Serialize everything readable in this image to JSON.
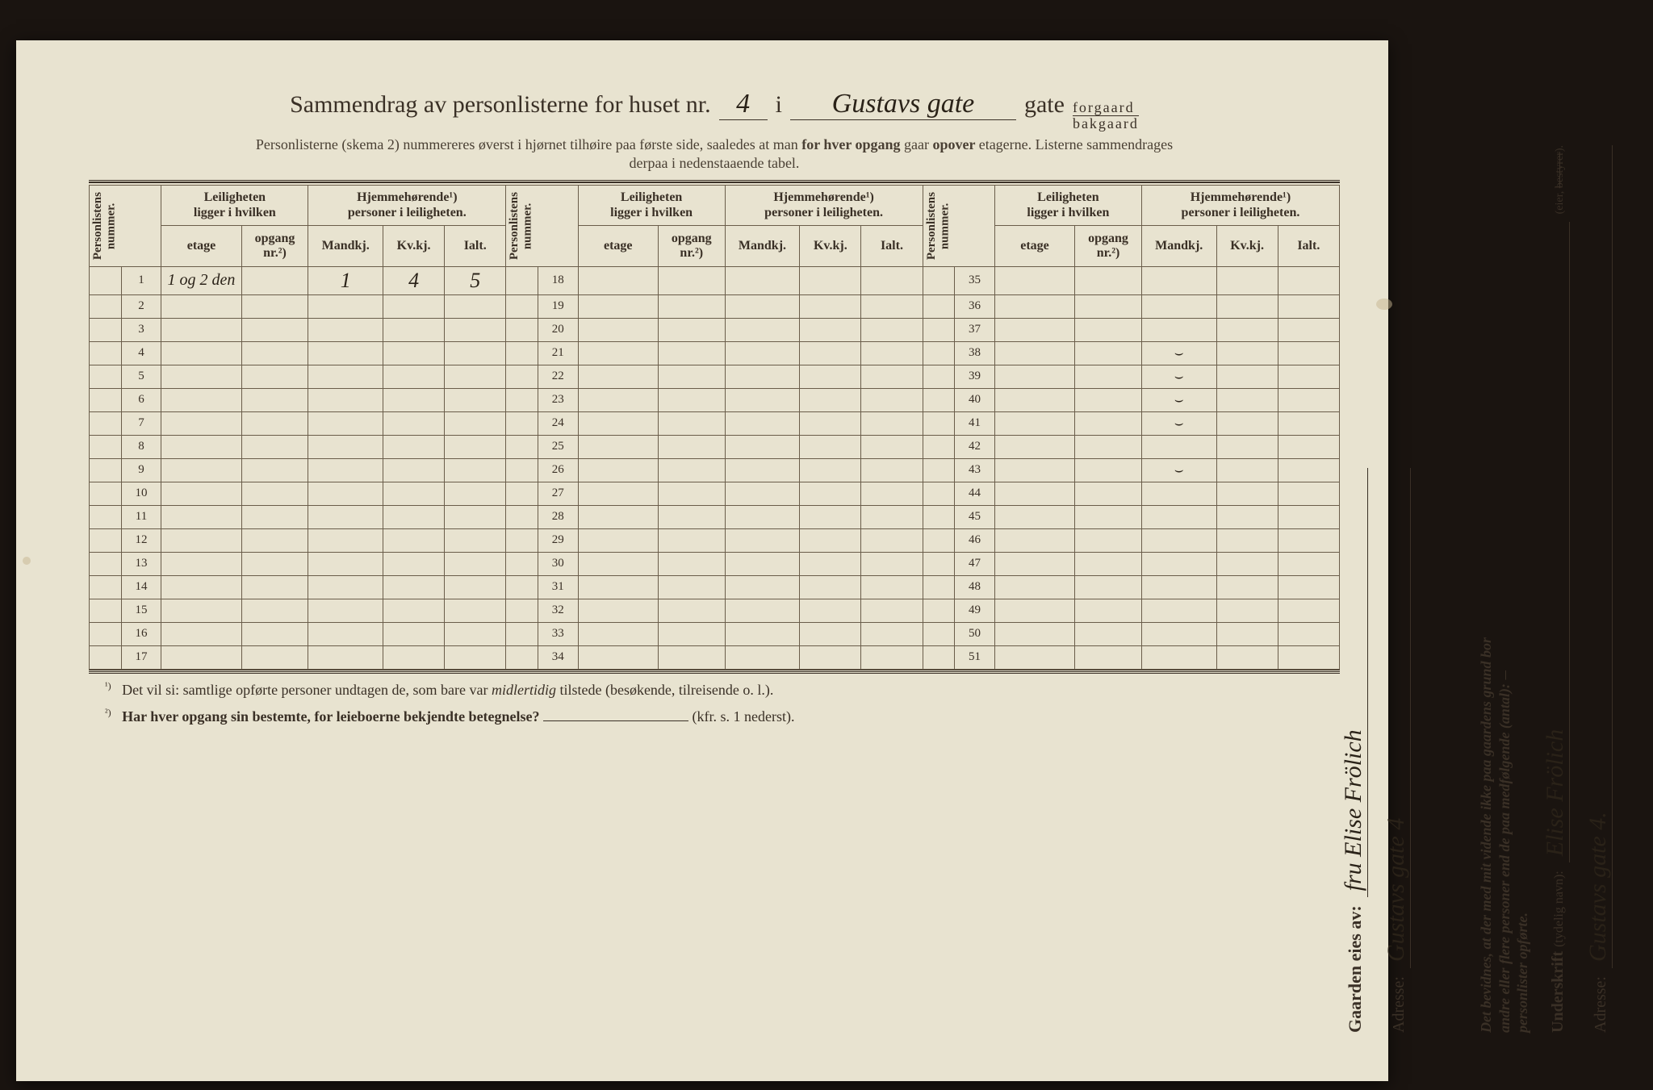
{
  "title": {
    "prefix": "Sammendrag av personlisterne for huset nr.",
    "house_no": "4",
    "sep": "i",
    "street_hand": "Gustavs gate",
    "suffix": "gate",
    "frac_top": "forgaard",
    "frac_bot": "bakgaard"
  },
  "subtitle_line1": "Personlisterne (skema 2) nummereres øverst i hjørnet tilhøire paa første side, saaledes at man ",
  "subtitle_bold": "for hver opgang ",
  "subtitle_line1b": "gaar ",
  "subtitle_bold2": "opover ",
  "subtitle_line1c": "etagerne.   Listerne sammendrages",
  "subtitle_line2": "derpaa i nedenstaaende tabel.",
  "headers": {
    "personlistens": "Personlistens\nnummer.",
    "leil_group": "Leiligheten\nligger i hvilken",
    "hjem_group": "Hjemmehørende¹)\npersoner i leiligheten.",
    "etage": "etage",
    "opgang": "opgang\nnr.²)",
    "mandkj": "Mandkj.",
    "kvkj": "Kv.kj.",
    "ialt": "Ialt."
  },
  "row1": {
    "etage": "1 og 2 den",
    "mandkj": "1",
    "kvkj": "4",
    "ialt": "5"
  },
  "ticks_col": [
    38,
    39,
    40,
    41,
    43
  ],
  "footnote1_sup": "¹)",
  "footnote1": "Det vil si: samtlige opførte personer undtagen de, som bare var ",
  "footnote1_i": "midlertidig",
  "footnote1b": " tilstede (besøkende, tilreisende o. l.).",
  "footnote2_sup": "²)",
  "footnote2_bold": "Har hver opgang sin bestemte, for leieboerne bekjendte betegnelse?",
  "footnote2_suffix": "(kfr. s. 1 nederst).",
  "owner": {
    "label": "Gaarden eies av:",
    "value": "fru Elise Frölich",
    "adresse_label": "Adresse:",
    "adresse_value": "Gustavs gate 4"
  },
  "sign": {
    "affirm1": "Det bevidnes, at der med mit vidende ikke paa gaardens grund bor",
    "affirm2": "andre eller flere personer end de paa medfølgende (antal):",
    "affirm3": "personlister opførte.",
    "und_label": "Underskrift",
    "und_paren": "(tydelig navn):",
    "und_value": "Elise Frölich",
    "eier_label": "(eier, ",
    "adresse_label": "Adresse:",
    "adresse_value": "Gustavs gate 4."
  },
  "colors": {
    "paper": "#e8e3d0",
    "ink": "#3a3026",
    "rule": "#6a5d4a"
  }
}
